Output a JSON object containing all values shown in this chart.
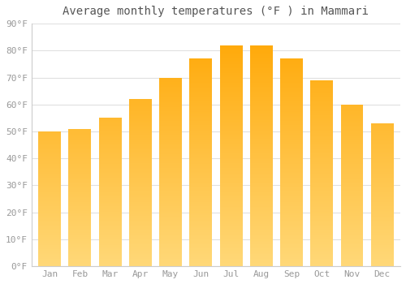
{
  "title": "Average monthly temperatures (°F ) in Mammari",
  "months": [
    "Jan",
    "Feb",
    "Mar",
    "Apr",
    "May",
    "Jun",
    "Jul",
    "Aug",
    "Sep",
    "Oct",
    "Nov",
    "Dec"
  ],
  "values": [
    50,
    51,
    55,
    62,
    70,
    77,
    82,
    82,
    77,
    69,
    60,
    53
  ],
  "bar_color_top": "#FFA500",
  "bar_color_bottom": "#FFD878",
  "ylim": [
    0,
    90
  ],
  "yticks": [
    0,
    10,
    20,
    30,
    40,
    50,
    60,
    70,
    80,
    90
  ],
  "ytick_labels": [
    "0°F",
    "10°F",
    "20°F",
    "30°F",
    "40°F",
    "50°F",
    "60°F",
    "70°F",
    "80°F",
    "90°F"
  ],
  "background_color": "#ffffff",
  "grid_color": "#e0e0e0",
  "title_fontsize": 10,
  "tick_fontsize": 8,
  "bar_width": 0.75
}
